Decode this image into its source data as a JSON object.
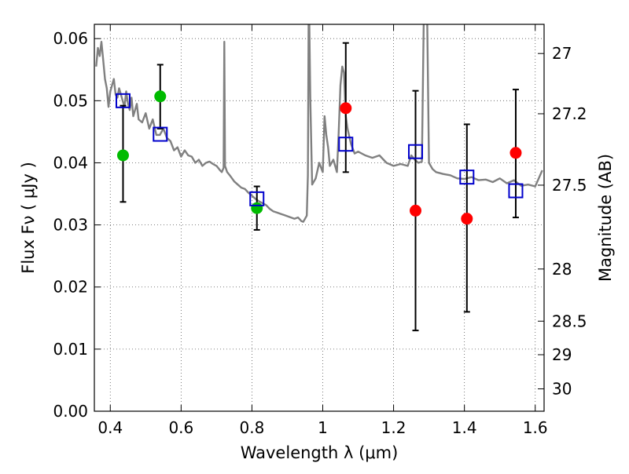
{
  "chart_data": {
    "type": "scatter",
    "xlabel": "Wavelength  λ (μm)",
    "ylabel": "Flux  Fν  ( μJy )",
    "y2label": "Magnitude (AB)",
    "xlim": [
      0.355,
      1.625
    ],
    "ylim": [
      0.0,
      0.0623
    ],
    "grid": true,
    "x_ticks": [
      0.4,
      0.6,
      0.8,
      1.0,
      1.2,
      1.4,
      1.6
    ],
    "x_tick_labels": [
      "0.4",
      "0.6",
      "0.8",
      "1",
      "1.2",
      "1.4",
      "1.6"
    ],
    "y_ticks": [
      0.0,
      0.01,
      0.02,
      0.03,
      0.04,
      0.05,
      0.06
    ],
    "y_tick_labels": [
      "0.00",
      "0.01",
      "0.02",
      "0.03",
      "0.04",
      "0.05",
      "0.06"
    ],
    "y2_ticks": [
      {
        "label": "27",
        "flux": 0.0576
      },
      {
        "label": "27.2",
        "flux": 0.0479
      },
      {
        "label": "27.5",
        "flux": 0.0364
      },
      {
        "label": "28",
        "flux": 0.0229
      },
      {
        "label": "28.5",
        "flux": 0.0145
      },
      {
        "label": "29",
        "flux": 0.0091
      },
      {
        "label": "30",
        "flux": 0.0036
      }
    ],
    "series": [
      {
        "kind": "line",
        "color": "#808080",
        "x": [
          0.36,
          0.365,
          0.37,
          0.375,
          0.38,
          0.385,
          0.39,
          0.395,
          0.4,
          0.405,
          0.41,
          0.415,
          0.42,
          0.425,
          0.43,
          0.435,
          0.44,
          0.445,
          0.45,
          0.455,
          0.46,
          0.465,
          0.47,
          0.475,
          0.48,
          0.49,
          0.5,
          0.51,
          0.52,
          0.53,
          0.54,
          0.55,
          0.56,
          0.57,
          0.58,
          0.59,
          0.6,
          0.61,
          0.62,
          0.63,
          0.64,
          0.65,
          0.66,
          0.67,
          0.68,
          0.69,
          0.7,
          0.71,
          0.715,
          0.72,
          0.722,
          0.724,
          0.73,
          0.74,
          0.75,
          0.76,
          0.77,
          0.78,
          0.79,
          0.8,
          0.81,
          0.82,
          0.83,
          0.84,
          0.85,
          0.86,
          0.87,
          0.88,
          0.89,
          0.9,
          0.91,
          0.92,
          0.93,
          0.94,
          0.945,
          0.95,
          0.955,
          0.958,
          0.96,
          0.962,
          0.965,
          0.97,
          0.98,
          0.99,
          1.0,
          1.005,
          1.01,
          1.015,
          1.02,
          1.03,
          1.04,
          1.045,
          1.05,
          1.055,
          1.06,
          1.065,
          1.07,
          1.08,
          1.09,
          1.1,
          1.12,
          1.14,
          1.16,
          1.18,
          1.2,
          1.22,
          1.24,
          1.25,
          1.26,
          1.27,
          1.28,
          1.285,
          1.29,
          1.295,
          1.3,
          1.31,
          1.32,
          1.34,
          1.36,
          1.38,
          1.4,
          1.42,
          1.44,
          1.46,
          1.48,
          1.5,
          1.52,
          1.54,
          1.56,
          1.58,
          1.6,
          1.61,
          1.62
        ],
        "y": [
          0.0555,
          0.0585,
          0.0572,
          0.0595,
          0.0565,
          0.0535,
          0.052,
          0.049,
          0.0515,
          0.0525,
          0.0535,
          0.051,
          0.0505,
          0.052,
          0.051,
          0.05,
          0.049,
          0.0515,
          0.0495,
          0.0485,
          0.0505,
          0.0475,
          0.0485,
          0.0495,
          0.047,
          0.0465,
          0.048,
          0.0455,
          0.047,
          0.0445,
          0.0445,
          0.0455,
          0.044,
          0.0435,
          0.042,
          0.0425,
          0.041,
          0.042,
          0.0412,
          0.041,
          0.04,
          0.0405,
          0.0395,
          0.04,
          0.0402,
          0.0398,
          0.0395,
          0.0388,
          0.0385,
          0.0392,
          0.0595,
          0.0395,
          0.0385,
          0.0378,
          0.037,
          0.0365,
          0.036,
          0.0358,
          0.0352,
          0.0347,
          0.0342,
          0.0338,
          0.0335,
          0.0332,
          0.0326,
          0.0322,
          0.032,
          0.0318,
          0.0316,
          0.0314,
          0.0312,
          0.031,
          0.0312,
          0.0306,
          0.0305,
          0.031,
          0.0315,
          0.038,
          0.0625,
          0.0625,
          0.05,
          0.0365,
          0.0375,
          0.04,
          0.0385,
          0.0475,
          0.0445,
          0.0425,
          0.0395,
          0.0405,
          0.0385,
          0.045,
          0.0525,
          0.0555,
          0.0545,
          0.0475,
          0.0455,
          0.043,
          0.0415,
          0.0418,
          0.0412,
          0.0408,
          0.0412,
          0.04,
          0.0395,
          0.0398,
          0.0395,
          0.0412,
          0.0405,
          0.04,
          0.0402,
          0.0625,
          0.0625,
          0.0625,
          0.04,
          0.039,
          0.0385,
          0.0382,
          0.038,
          0.0375,
          0.0374,
          0.0377,
          0.0372,
          0.0373,
          0.0369,
          0.0375,
          0.0367,
          0.0372,
          0.0363,
          0.0365,
          0.0362,
          0.0375,
          0.0388
        ]
      },
      {
        "kind": "errorbars",
        "color": "#000000",
        "x": [
          0.436,
          0.541,
          0.814,
          1.065,
          1.262,
          1.407,
          1.545
        ],
        "y": [
          0.0415,
          0.0505,
          0.0327,
          0.0488,
          0.0323,
          0.031,
          0.0415
        ],
        "lo": [
          0.0337,
          0.0455,
          0.0292,
          0.0385,
          0.013,
          0.016,
          0.0312
        ],
        "hi": [
          0.0492,
          0.0558,
          0.0362,
          0.0593,
          0.0516,
          0.0462,
          0.0518
        ]
      },
      {
        "kind": "markers",
        "marker": "circle",
        "color": "#00bb00",
        "x": [
          0.436,
          0.541,
          0.814
        ],
        "y": [
          0.0412,
          0.0507,
          0.0327
        ]
      },
      {
        "kind": "markers",
        "marker": "circle",
        "color": "#ff0000",
        "x": [
          1.065,
          1.262,
          1.407,
          1.545
        ],
        "y": [
          0.0488,
          0.0323,
          0.031,
          0.0416
        ]
      },
      {
        "kind": "markers",
        "marker": "square-open",
        "color": "#0000cc",
        "x": [
          0.436,
          0.541,
          0.814,
          1.065,
          1.262,
          1.407,
          1.545
        ],
        "y": [
          0.05,
          0.0446,
          0.0342,
          0.043,
          0.0418,
          0.0377,
          0.0355
        ]
      }
    ]
  }
}
